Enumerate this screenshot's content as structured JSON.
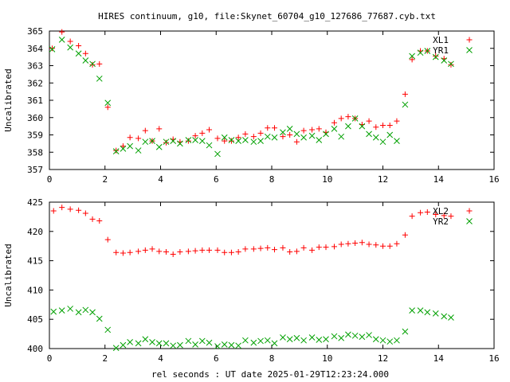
{
  "title": "HIRES continuum, g10, file:Skynet_60704_g10_127686_77687.cyb.txt",
  "xlabel": "rel seconds : UT date 2025-01-29T12:23:24.000",
  "colors": {
    "series1": "#ff0000",
    "series2": "#00a000"
  },
  "chart_data": [
    {
      "type": "scatter",
      "ylabel": "Uncalibrated",
      "xlim": [
        0,
        16
      ],
      "ylim": [
        357,
        365
      ],
      "xticks": [
        0,
        2,
        4,
        6,
        8,
        10,
        12,
        14,
        16
      ],
      "yticks": [
        357,
        358,
        359,
        360,
        361,
        362,
        363,
        364,
        365
      ],
      "legend_position": "top-right",
      "series": [
        {
          "name": "XL1",
          "marker": "plus",
          "points": [
            [
              0.1,
              364.0
            ],
            [
              0.45,
              364.95
            ],
            [
              0.75,
              364.4
            ],
            [
              1.05,
              364.15
            ],
            [
              1.3,
              363.7
            ],
            [
              1.55,
              363.05
            ],
            [
              1.8,
              363.1
            ],
            [
              2.1,
              360.6
            ],
            [
              2.4,
              358.1
            ],
            [
              2.65,
              358.35
            ],
            [
              2.9,
              358.85
            ],
            [
              3.2,
              358.8
            ],
            [
              3.45,
              359.25
            ],
            [
              3.7,
              358.65
            ],
            [
              3.95,
              359.35
            ],
            [
              4.2,
              358.55
            ],
            [
              4.45,
              358.75
            ],
            [
              4.7,
              358.6
            ],
            [
              5.0,
              358.65
            ],
            [
              5.25,
              358.95
            ],
            [
              5.5,
              359.1
            ],
            [
              5.75,
              359.3
            ],
            [
              6.05,
              358.8
            ],
            [
              6.3,
              358.65
            ],
            [
              6.55,
              358.65
            ],
            [
              6.8,
              358.85
            ],
            [
              7.05,
              359.05
            ],
            [
              7.35,
              358.9
            ],
            [
              7.6,
              359.1
            ],
            [
              7.85,
              359.4
            ],
            [
              8.1,
              359.4
            ],
            [
              8.4,
              358.9
            ],
            [
              8.65,
              359.0
            ],
            [
              8.9,
              358.6
            ],
            [
              9.15,
              359.25
            ],
            [
              9.45,
              359.3
            ],
            [
              9.7,
              359.35
            ],
            [
              9.95,
              359.15
            ],
            [
              10.25,
              359.7
            ],
            [
              10.5,
              359.95
            ],
            [
              10.75,
              360.05
            ],
            [
              11.0,
              359.95
            ],
            [
              11.25,
              359.6
            ],
            [
              11.5,
              359.8
            ],
            [
              11.75,
              359.45
            ],
            [
              12.0,
              359.55
            ],
            [
              12.25,
              359.55
            ],
            [
              12.5,
              359.8
            ],
            [
              12.8,
              361.35
            ],
            [
              13.05,
              363.35
            ],
            [
              13.35,
              363.85
            ],
            [
              13.6,
              363.85
            ],
            [
              13.9,
              363.55
            ],
            [
              14.2,
              363.4
            ],
            [
              14.45,
              363.05
            ]
          ]
        },
        {
          "name": "YR1",
          "marker": "cross",
          "points": [
            [
              0.1,
              363.95
            ],
            [
              0.45,
              364.5
            ],
            [
              0.75,
              364.05
            ],
            [
              1.05,
              363.7
            ],
            [
              1.3,
              363.3
            ],
            [
              1.55,
              363.1
            ],
            [
              1.8,
              362.25
            ],
            [
              2.1,
              360.85
            ],
            [
              2.4,
              358.05
            ],
            [
              2.65,
              358.2
            ],
            [
              2.9,
              358.35
            ],
            [
              3.2,
              358.1
            ],
            [
              3.45,
              358.6
            ],
            [
              3.7,
              358.65
            ],
            [
              3.95,
              358.3
            ],
            [
              4.2,
              358.6
            ],
            [
              4.45,
              358.65
            ],
            [
              4.7,
              358.5
            ],
            [
              5.0,
              358.7
            ],
            [
              5.25,
              358.7
            ],
            [
              5.5,
              358.65
            ],
            [
              5.75,
              358.4
            ],
            [
              6.05,
              357.9
            ],
            [
              6.3,
              358.85
            ],
            [
              6.55,
              358.7
            ],
            [
              6.8,
              358.65
            ],
            [
              7.05,
              358.7
            ],
            [
              7.35,
              358.6
            ],
            [
              7.6,
              358.65
            ],
            [
              7.85,
              358.9
            ],
            [
              8.1,
              358.85
            ],
            [
              8.4,
              359.15
            ],
            [
              8.65,
              359.35
            ],
            [
              8.9,
              359.05
            ],
            [
              9.15,
              358.85
            ],
            [
              9.45,
              358.95
            ],
            [
              9.7,
              358.7
            ],
            [
              9.95,
              359.05
            ],
            [
              10.25,
              359.35
            ],
            [
              10.5,
              358.9
            ],
            [
              10.75,
              359.5
            ],
            [
              11.0,
              359.95
            ],
            [
              11.25,
              359.5
            ],
            [
              11.5,
              359.05
            ],
            [
              11.75,
              358.85
            ],
            [
              12.0,
              358.6
            ],
            [
              12.25,
              359.0
            ],
            [
              12.5,
              358.65
            ],
            [
              12.8,
              360.75
            ],
            [
              13.05,
              363.55
            ],
            [
              13.35,
              363.75
            ],
            [
              13.6,
              363.85
            ],
            [
              13.9,
              363.5
            ],
            [
              14.2,
              363.3
            ],
            [
              14.45,
              363.1
            ]
          ]
        }
      ]
    },
    {
      "type": "scatter",
      "ylabel": "Uncalibrated",
      "xlim": [
        0,
        16
      ],
      "ylim": [
        400,
        425
      ],
      "xticks": [
        0,
        2,
        4,
        6,
        8,
        10,
        12,
        14,
        16
      ],
      "yticks": [
        400,
        405,
        410,
        415,
        420,
        425
      ],
      "legend_position": "top-right",
      "series": [
        {
          "name": "XL2",
          "marker": "plus",
          "points": [
            [
              0.15,
              423.5
            ],
            [
              0.45,
              424.1
            ],
            [
              0.75,
              423.8
            ],
            [
              1.05,
              423.6
            ],
            [
              1.3,
              423.1
            ],
            [
              1.55,
              422.1
            ],
            [
              1.8,
              421.8
            ],
            [
              2.1,
              418.6
            ],
            [
              2.4,
              416.4
            ],
            [
              2.65,
              416.3
            ],
            [
              2.9,
              416.4
            ],
            [
              3.2,
              416.6
            ],
            [
              3.45,
              416.8
            ],
            [
              3.7,
              417.0
            ],
            [
              3.95,
              416.6
            ],
            [
              4.2,
              416.5
            ],
            [
              4.45,
              416.1
            ],
            [
              4.7,
              416.5
            ],
            [
              5.0,
              416.6
            ],
            [
              5.25,
              416.7
            ],
            [
              5.5,
              416.8
            ],
            [
              5.75,
              416.8
            ],
            [
              6.05,
              416.8
            ],
            [
              6.3,
              416.4
            ],
            [
              6.55,
              416.4
            ],
            [
              6.8,
              416.5
            ],
            [
              7.05,
              417.0
            ],
            [
              7.35,
              417.0
            ],
            [
              7.6,
              417.1
            ],
            [
              7.85,
              417.2
            ],
            [
              8.1,
              416.9
            ],
            [
              8.4,
              417.2
            ],
            [
              8.65,
              416.5
            ],
            [
              8.9,
              416.6
            ],
            [
              9.15,
              417.2
            ],
            [
              9.45,
              416.8
            ],
            [
              9.7,
              417.3
            ],
            [
              9.95,
              417.3
            ],
            [
              10.25,
              417.4
            ],
            [
              10.5,
              417.8
            ],
            [
              10.75,
              417.9
            ],
            [
              11.0,
              418.0
            ],
            [
              11.25,
              418.1
            ],
            [
              11.5,
              417.8
            ],
            [
              11.75,
              417.7
            ],
            [
              12.0,
              417.5
            ],
            [
              12.25,
              417.5
            ],
            [
              12.5,
              417.9
            ],
            [
              12.8,
              419.4
            ],
            [
              13.05,
              422.6
            ],
            [
              13.35,
              423.2
            ],
            [
              13.6,
              423.3
            ],
            [
              13.9,
              422.9
            ],
            [
              14.2,
              422.7
            ],
            [
              14.45,
              422.6
            ]
          ]
        },
        {
          "name": "YR2",
          "marker": "cross",
          "points": [
            [
              0.15,
              406.3
            ],
            [
              0.45,
              406.5
            ],
            [
              0.75,
              406.8
            ],
            [
              1.05,
              406.2
            ],
            [
              1.3,
              406.6
            ],
            [
              1.55,
              406.2
            ],
            [
              1.8,
              405.1
            ],
            [
              2.1,
              403.2
            ],
            [
              2.4,
              400.1
            ],
            [
              2.65,
              400.6
            ],
            [
              2.9,
              401.1
            ],
            [
              3.2,
              400.9
            ],
            [
              3.45,
              401.6
            ],
            [
              3.7,
              401.1
            ],
            [
              3.95,
              400.9
            ],
            [
              4.2,
              400.9
            ],
            [
              4.45,
              400.5
            ],
            [
              4.7,
              400.6
            ],
            [
              5.0,
              401.3
            ],
            [
              5.25,
              400.7
            ],
            [
              5.5,
              401.3
            ],
            [
              5.75,
              401.0
            ],
            [
              6.05,
              400.4
            ],
            [
              6.3,
              400.7
            ],
            [
              6.55,
              400.6
            ],
            [
              6.8,
              400.5
            ],
            [
              7.05,
              401.4
            ],
            [
              7.35,
              401.0
            ],
            [
              7.6,
              401.3
            ],
            [
              7.85,
              401.4
            ],
            [
              8.1,
              400.9
            ],
            [
              8.4,
              401.9
            ],
            [
              8.65,
              401.6
            ],
            [
              8.9,
              401.8
            ],
            [
              9.15,
              401.4
            ],
            [
              9.45,
              401.9
            ],
            [
              9.7,
              401.5
            ],
            [
              9.95,
              401.6
            ],
            [
              10.25,
              402.1
            ],
            [
              10.5,
              401.8
            ],
            [
              10.75,
              402.4
            ],
            [
              11.0,
              402.2
            ],
            [
              11.25,
              402.0
            ],
            [
              11.5,
              402.3
            ],
            [
              11.75,
              401.6
            ],
            [
              12.0,
              401.4
            ],
            [
              12.25,
              401.2
            ],
            [
              12.5,
              401.4
            ],
            [
              12.8,
              402.9
            ],
            [
              13.05,
              406.5
            ],
            [
              13.35,
              406.5
            ],
            [
              13.6,
              406.2
            ],
            [
              13.9,
              406.0
            ],
            [
              14.2,
              405.5
            ],
            [
              14.45,
              405.3
            ]
          ]
        }
      ]
    }
  ]
}
